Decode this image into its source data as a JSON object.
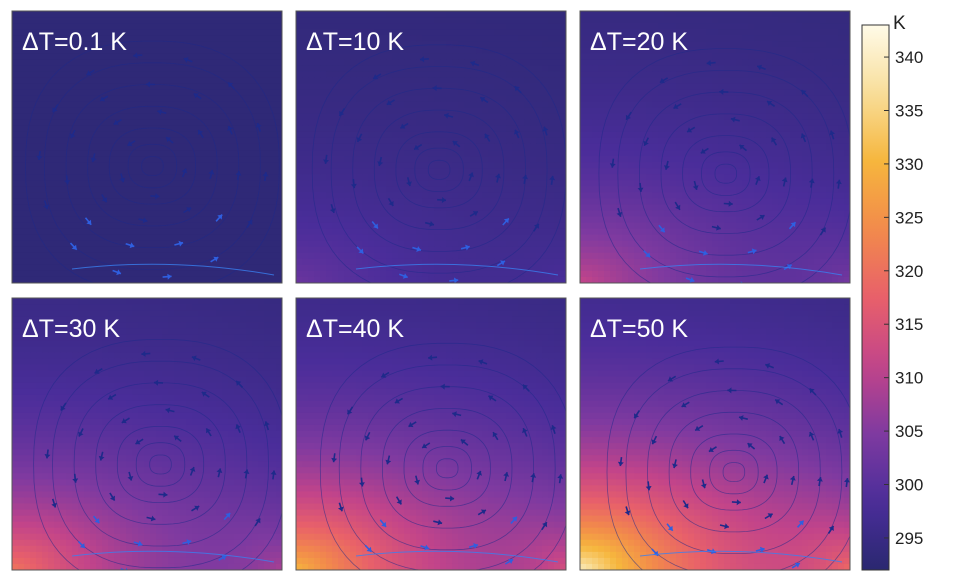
{
  "chart_data": {
    "type": "heatmap",
    "description_type": "temperature field with velocity streamlines (6 panels)",
    "panels": [
      {
        "label": "ΔT=0.1 K",
        "delta_T": 0.1
      },
      {
        "label": "ΔT=10 K",
        "delta_T": 10
      },
      {
        "label": "ΔT=20 K",
        "delta_T": 20
      },
      {
        "label": "ΔT=30 K",
        "delta_T": 30
      },
      {
        "label": "ΔT=40 K",
        "delta_T": 40
      },
      {
        "label": "ΔT=50 K",
        "delta_T": 50
      }
    ],
    "colorbar": {
      "label": "K",
      "min": 292,
      "max": 343,
      "ticks": [
        295,
        300,
        305,
        310,
        315,
        320,
        325,
        330,
        335,
        340
      ],
      "colormap": "plasma-like",
      "colors": [
        "#2a2870",
        "#4a2d9a",
        "#7f3aa0",
        "#c2448a",
        "#e8606a",
        "#f28a4b",
        "#f6b63d",
        "#f8de9a",
        "#fffbe8"
      ]
    },
    "base_temperature": 293
  }
}
